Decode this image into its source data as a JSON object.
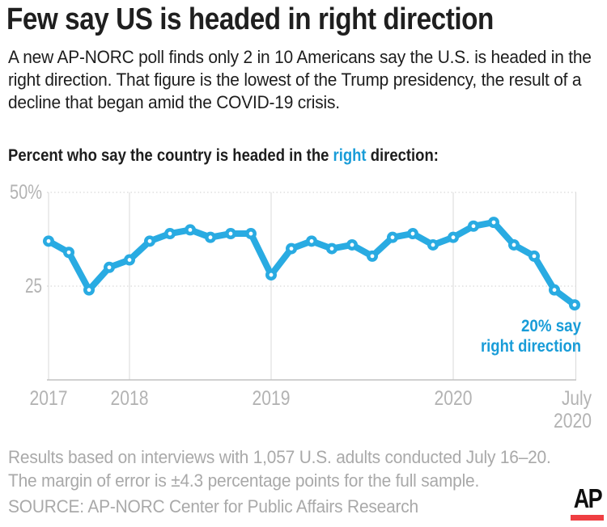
{
  "header": {
    "title": "Few say US is headed in right direction",
    "intro": "A new AP-NORC poll finds only 2 in 10 Americans say the U.S. is headed in the right direction. That figure is the lowest of the Trump presidency, the result of a decline that began amid the COVID-19 crisis."
  },
  "lead_in": {
    "before": "Percent who say the country is headed in the ",
    "highlight": "right",
    "after": " direction:"
  },
  "colors": {
    "line_blue": "#29abe2",
    "accent_blue": "#189cd8",
    "title_color": "#1f1f1f",
    "body_color": "#1d1d1d",
    "tick_gray": "#b3b3b3",
    "grid_gray": "#d9d9d9",
    "dotted_gray": "#cfcfcf",
    "axis_gray": "#c2c2c2",
    "footer_gray": "#a9a9a9",
    "ap_red": "#ef3e42"
  },
  "chart_data": {
    "type": "line",
    "title": "Percent who say the country is headed in the right direction",
    "unit": "percent",
    "ylim": [
      0,
      50
    ],
    "grid": "horizontal dotted at 25 and 50; vertical solid at year starts and right edge",
    "legend": "none",
    "yticks": [
      {
        "value": 50,
        "label": "50%"
      },
      {
        "value": 25,
        "label": "25"
      }
    ],
    "xticks": [
      {
        "index": 0,
        "label": "2017"
      },
      {
        "index": 4,
        "label": "2018"
      },
      {
        "index": 11,
        "label": "2019"
      },
      {
        "index": 20,
        "label": "2020"
      },
      {
        "index": 26,
        "label": "July 2020"
      }
    ],
    "values": [
      37,
      34,
      24,
      30,
      32,
      37,
      39,
      40,
      38,
      39,
      39,
      28,
      35,
      37,
      35,
      36,
      33,
      38,
      39,
      36,
      38,
      41,
      42,
      36,
      33,
      24,
      20
    ],
    "annotation": {
      "line1": "20% say",
      "line2": "right direction"
    }
  },
  "footer": {
    "note_line1": "Results based on interviews with 1,057 U.S. adults conducted July 16–20.",
    "note_line2": "The margin of error is ±4.3 percentage points for the full sample.",
    "source": "SOURCE: AP-NORC Center for Public Affairs Research",
    "ap_logo_text": "AP"
  }
}
